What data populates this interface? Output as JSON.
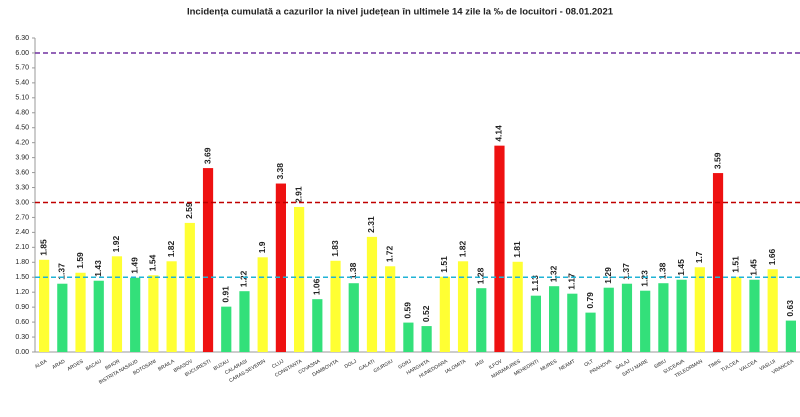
{
  "chart_data": {
    "type": "bar",
    "title": "Incidența cumulată a cazurilor la nivel județean în ultimele 14 zile la ‰ de locuitori - 08.01.2021",
    "categories": [
      "ALBA",
      "ARAD",
      "ARGES",
      "BACAU",
      "BIHOR",
      "BISTRITA NASAUD",
      "BOTOSANI",
      "BRAILA",
      "BRASOV",
      "BUCURESTI",
      "BUZAU",
      "CALARASI",
      "CARAS-SEVERIN",
      "CLUJ",
      "CONSTANTA",
      "COVASNA",
      "DAMBOVITA",
      "DOLJ",
      "GALATI",
      "GIURGIU",
      "GORJ",
      "HARGHITA",
      "HUNEDOARA",
      "IALOMITA",
      "IASI",
      "ILFOV",
      "MARAMURES",
      "MEHEDINTI",
      "MURES",
      "NEAMT",
      "OLT",
      "PRAHOVA",
      "SALAJ",
      "SATU MARE",
      "SIBIU",
      "SUCEAVA",
      "TELEORMAN",
      "TIMIS",
      "TULCEA",
      "VALCEA",
      "VASLUI",
      "VRANCEA"
    ],
    "values": [
      1.85,
      1.37,
      1.59,
      1.43,
      1.92,
      1.49,
      1.54,
      1.82,
      2.59,
      3.69,
      0.91,
      1.22,
      1.9,
      3.38,
      2.91,
      1.06,
      1.83,
      1.38,
      2.31,
      1.72,
      0.59,
      0.52,
      1.51,
      1.82,
      1.28,
      4.14,
      1.81,
      1.13,
      1.32,
      1.17,
      0.79,
      1.29,
      1.37,
      1.23,
      1.38,
      1.45,
      1.7,
      3.59,
      1.51,
      1.45,
      1.66,
      0.63
    ],
    "colors": [
      "#ffff33",
      "#33e07a",
      "#ffff33",
      "#33e07a",
      "#ffff33",
      "#33e07a",
      "#ffff33",
      "#ffff33",
      "#ffff33",
      "#ee1111",
      "#33e07a",
      "#33e07a",
      "#ffff33",
      "#ee1111",
      "#ffff33",
      "#33e07a",
      "#ffff33",
      "#33e07a",
      "#ffff33",
      "#ffff33",
      "#33e07a",
      "#33e07a",
      "#ffff33",
      "#ffff33",
      "#33e07a",
      "#ee1111",
      "#ffff33",
      "#33e07a",
      "#33e07a",
      "#33e07a",
      "#33e07a",
      "#33e07a",
      "#33e07a",
      "#33e07a",
      "#33e07a",
      "#33e07a",
      "#ffff33",
      "#ee1111",
      "#ffff33",
      "#33e07a",
      "#ffff33",
      "#33e07a"
    ],
    "ylim": [
      0,
      6.3
    ],
    "yticks": [
      {
        "value": 0,
        "label": "0.00"
      },
      {
        "value": 0.3,
        "label": "0.30"
      },
      {
        "value": 0.6,
        "label": "0.60"
      },
      {
        "value": 0.9,
        "label": "0.90"
      },
      {
        "value": 1.2,
        "label": "1.20"
      },
      {
        "value": 1.5,
        "label": "1.50"
      },
      {
        "value": 1.8,
        "label": "1.80"
      },
      {
        "value": 2.1,
        "label": "2.10"
      },
      {
        "value": 2.4,
        "label": "2.40"
      },
      {
        "value": 2.7,
        "label": "2.70"
      },
      {
        "value": 3,
        "label": "3.00"
      },
      {
        "value": 3.3,
        "label": "3.30"
      },
      {
        "value": 3.6,
        "label": "3.60"
      },
      {
        "value": 3.9,
        "label": "3.90"
      },
      {
        "value": 4.2,
        "label": "4.20"
      },
      {
        "value": 4.5,
        "label": "4.50"
      },
      {
        "value": 4.8,
        "label": "4.80"
      },
      {
        "value": 5.1,
        "label": "5.10"
      },
      {
        "value": 5.4,
        "label": "5.40"
      },
      {
        "value": 5.7,
        "label": "5.70"
      },
      {
        "value": 6,
        "label": "6.00"
      },
      {
        "value": 6.3,
        "label": "6.30"
      }
    ],
    "reference_lines": [
      {
        "value": 6,
        "color": "#7030a0"
      },
      {
        "value": 3,
        "color": "#c00000"
      },
      {
        "value": 1.5,
        "color": "#1fb3d6"
      }
    ]
  }
}
